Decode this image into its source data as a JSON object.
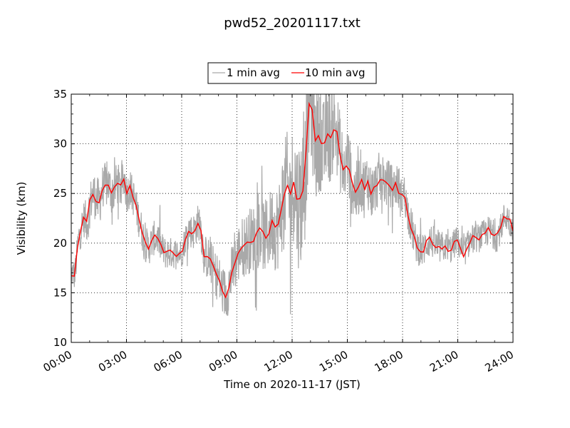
{
  "chart_data": {
    "type": "line",
    "title": "pwd52_20201117.txt",
    "xlabel": "Time on 2020-11-17 (JST)",
    "ylabel": "Visibility (km)",
    "xlim_hours": [
      0,
      24
    ],
    "ylim": [
      10,
      35
    ],
    "x_ticks": [
      "00:00",
      "03:00",
      "06:00",
      "09:00",
      "12:00",
      "15:00",
      "18:00",
      "21:00",
      "24:00"
    ],
    "y_ticks": [
      "10",
      "15",
      "20",
      "25",
      "30",
      "35"
    ],
    "grid": true,
    "legend_position": "top-center",
    "series": [
      {
        "name": "1 min avg",
        "color": "#a9a9a9",
        "noise_amplitude_km": [
          [
            0,
            1.5
          ],
          [
            1.5,
            2.5
          ],
          [
            3,
            2.0
          ],
          [
            6,
            1.5
          ],
          [
            9,
            3.0
          ],
          [
            11,
            4.0
          ],
          [
            12.5,
            7.0
          ],
          [
            15,
            3.5
          ],
          [
            18,
            2.0
          ],
          [
            21,
            1.5
          ],
          [
            24,
            1.5
          ]
        ]
      },
      {
        "name": "10 min avg",
        "color": "#ff0000",
        "points_hours_km": [
          [
            0.0,
            17.0
          ],
          [
            0.2,
            16.8
          ],
          [
            0.4,
            20.5
          ],
          [
            0.7,
            22.5
          ],
          [
            0.9,
            22.0
          ],
          [
            1.0,
            24.0
          ],
          [
            1.2,
            25.0
          ],
          [
            1.5,
            24.0
          ],
          [
            1.7,
            25.5
          ],
          [
            2.0,
            26.0
          ],
          [
            2.2,
            25.0
          ],
          [
            2.5,
            26.0
          ],
          [
            2.7,
            25.5
          ],
          [
            2.9,
            26.5
          ],
          [
            3.0,
            25.0
          ],
          [
            3.2,
            25.5
          ],
          [
            3.4,
            24.5
          ],
          [
            3.6,
            23.0
          ],
          [
            3.8,
            21.5
          ],
          [
            4.0,
            20.0
          ],
          [
            4.2,
            19.5
          ],
          [
            4.5,
            20.5
          ],
          [
            4.7,
            20.5
          ],
          [
            4.9,
            19.5
          ],
          [
            5.1,
            19.0
          ],
          [
            5.4,
            19.0
          ],
          [
            5.7,
            19.0
          ],
          [
            6.0,
            19.0
          ],
          [
            6.2,
            20.5
          ],
          [
            6.4,
            21.5
          ],
          [
            6.6,
            21.0
          ],
          [
            6.8,
            21.8
          ],
          [
            7.0,
            22.3
          ],
          [
            7.1,
            20.5
          ],
          [
            7.2,
            18.8
          ],
          [
            7.4,
            18.5
          ],
          [
            7.6,
            18.0
          ],
          [
            7.8,
            17.0
          ],
          [
            8.0,
            16.5
          ],
          [
            8.2,
            15.2
          ],
          [
            8.4,
            14.8
          ],
          [
            8.6,
            16.0
          ],
          [
            8.8,
            17.5
          ],
          [
            9.0,
            18.5
          ],
          [
            9.2,
            19.5
          ],
          [
            9.5,
            19.8
          ],
          [
            9.7,
            20.3
          ],
          [
            9.9,
            20.5
          ],
          [
            10.1,
            20.8
          ],
          [
            10.3,
            21.5
          ],
          [
            10.5,
            20.5
          ],
          [
            10.7,
            21.0
          ],
          [
            10.9,
            22.0
          ],
          [
            11.1,
            21.3
          ],
          [
            11.3,
            22.0
          ],
          [
            11.5,
            24.5
          ],
          [
            11.7,
            26.0
          ],
          [
            11.9,
            24.5
          ],
          [
            12.1,
            26.5
          ],
          [
            12.3,
            24.0
          ],
          [
            12.5,
            24.5
          ],
          [
            12.7,
            27.0
          ],
          [
            12.85,
            32.5
          ],
          [
            12.95,
            35.0
          ],
          [
            13.1,
            33.0
          ],
          [
            13.3,
            30.0
          ],
          [
            13.5,
            31.0
          ],
          [
            13.7,
            29.0
          ],
          [
            13.9,
            31.5
          ],
          [
            14.1,
            30.5
          ],
          [
            14.3,
            32.0
          ],
          [
            14.5,
            30.5
          ],
          [
            14.7,
            28.0
          ],
          [
            14.9,
            27.0
          ],
          [
            15.0,
            29.0
          ],
          [
            15.1,
            27.5
          ],
          [
            15.3,
            25.5
          ],
          [
            15.5,
            25.0
          ],
          [
            15.7,
            26.5
          ],
          [
            15.9,
            25.5
          ],
          [
            16.1,
            26.5
          ],
          [
            16.3,
            25.0
          ],
          [
            16.5,
            25.5
          ],
          [
            16.7,
            26.5
          ],
          [
            16.9,
            26.5
          ],
          [
            17.1,
            26.0
          ],
          [
            17.3,
            26.0
          ],
          [
            17.5,
            25.5
          ],
          [
            17.7,
            26.0
          ],
          [
            17.9,
            24.5
          ],
          [
            18.1,
            25.0
          ],
          [
            18.3,
            23.0
          ],
          [
            18.5,
            21.5
          ],
          [
            18.7,
            20.0
          ],
          [
            18.9,
            19.5
          ],
          [
            19.1,
            19.2
          ],
          [
            19.3,
            20.0
          ],
          [
            19.5,
            20.3
          ],
          [
            19.7,
            20.0
          ],
          [
            19.9,
            19.5
          ],
          [
            20.1,
            19.5
          ],
          [
            20.3,
            19.8
          ],
          [
            20.5,
            19.3
          ],
          [
            20.7,
            19.5
          ],
          [
            20.9,
            20.3
          ],
          [
            21.1,
            19.8
          ],
          [
            21.3,
            18.8
          ],
          [
            21.5,
            19.7
          ],
          [
            21.7,
            20.3
          ],
          [
            21.9,
            20.5
          ],
          [
            22.1,
            20.5
          ],
          [
            22.3,
            20.7
          ],
          [
            22.5,
            21.0
          ],
          [
            22.7,
            21.3
          ],
          [
            22.9,
            21.0
          ],
          [
            23.1,
            20.5
          ],
          [
            23.3,
            21.3
          ],
          [
            23.5,
            22.5
          ],
          [
            23.7,
            22.7
          ],
          [
            23.9,
            21.8
          ],
          [
            24.0,
            21.0
          ]
        ]
      }
    ]
  }
}
